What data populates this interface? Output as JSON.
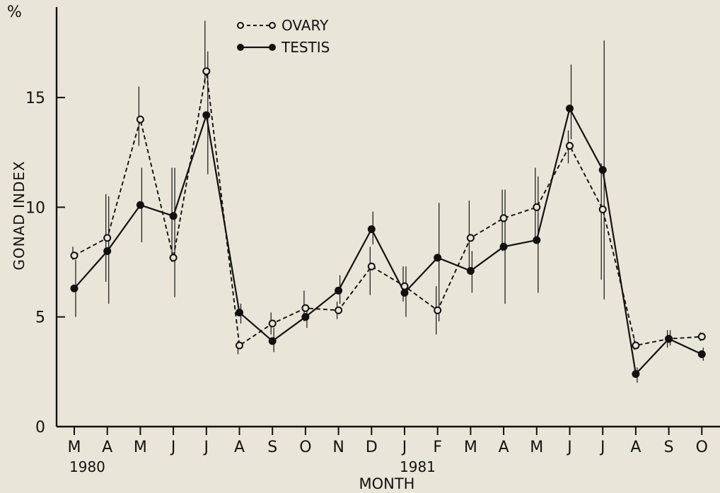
{
  "chart_data": {
    "type": "line",
    "ylabel": "GONAD INDEX",
    "ylabel_unit": "%",
    "xlabel": "MONTH",
    "categories": [
      "M",
      "A",
      "M",
      "J",
      "J",
      "A",
      "S",
      "O",
      "N",
      "D",
      "J",
      "F",
      "M",
      "A",
      "M",
      "J",
      "J",
      "A",
      "S",
      "O"
    ],
    "year_labels": [
      {
        "label": "1980",
        "index": 0
      },
      {
        "label": "1981",
        "index": 10
      }
    ],
    "ylim": [
      0,
      18
    ],
    "yticks": [
      0,
      5,
      10,
      15
    ],
    "grid": false,
    "legend_position": "top-center",
    "series": [
      {
        "name": "OVARY",
        "style": "dashed, open circles",
        "values": [
          7.8,
          8.6,
          14.0,
          7.7,
          16.2,
          3.7,
          4.7,
          5.4,
          5.3,
          7.3,
          6.4,
          5.3,
          8.6,
          9.5,
          10.0,
          12.8,
          9.9,
          3.7,
          4.0,
          4.1
        ],
        "err_low": [
          7.6,
          6.6,
          12.8,
          7.5,
          15.6,
          3.3,
          4.2,
          4.8,
          4.9,
          6.0,
          5.7,
          4.2,
          7.0,
          8.0,
          8.5,
          12.0,
          6.7,
          3.5,
          3.6,
          3.9
        ],
        "err_high": [
          8.2,
          10.6,
          15.5,
          11.8,
          18.5,
          3.9,
          5.2,
          6.2,
          5.7,
          8.2,
          7.3,
          6.4,
          10.3,
          10.8,
          11.8,
          13.5,
          12.0,
          4.0,
          4.4,
          4.3
        ]
      },
      {
        "name": "TESTIS",
        "style": "solid, filled circles",
        "values": [
          6.3,
          8.0,
          10.1,
          9.6,
          14.2,
          5.2,
          3.9,
          5.0,
          6.2,
          9.0,
          6.1,
          7.7,
          7.1,
          8.2,
          8.5,
          14.5,
          11.7,
          2.4,
          4.0,
          3.3
        ],
        "err_low": [
          5.0,
          5.6,
          8.4,
          5.9,
          11.5,
          4.7,
          3.4,
          4.5,
          5.6,
          8.3,
          5.0,
          4.8,
          6.1,
          5.6,
          6.1,
          13.1,
          5.8,
          2.0,
          3.7,
          3.0
        ],
        "err_high": [
          7.6,
          10.5,
          11.8,
          11.8,
          17.1,
          5.6,
          4.5,
          5.5,
          6.9,
          9.8,
          7.3,
          10.2,
          8.0,
          10.8,
          11.4,
          16.5,
          17.6,
          2.7,
          4.4,
          3.6
        ]
      }
    ]
  }
}
